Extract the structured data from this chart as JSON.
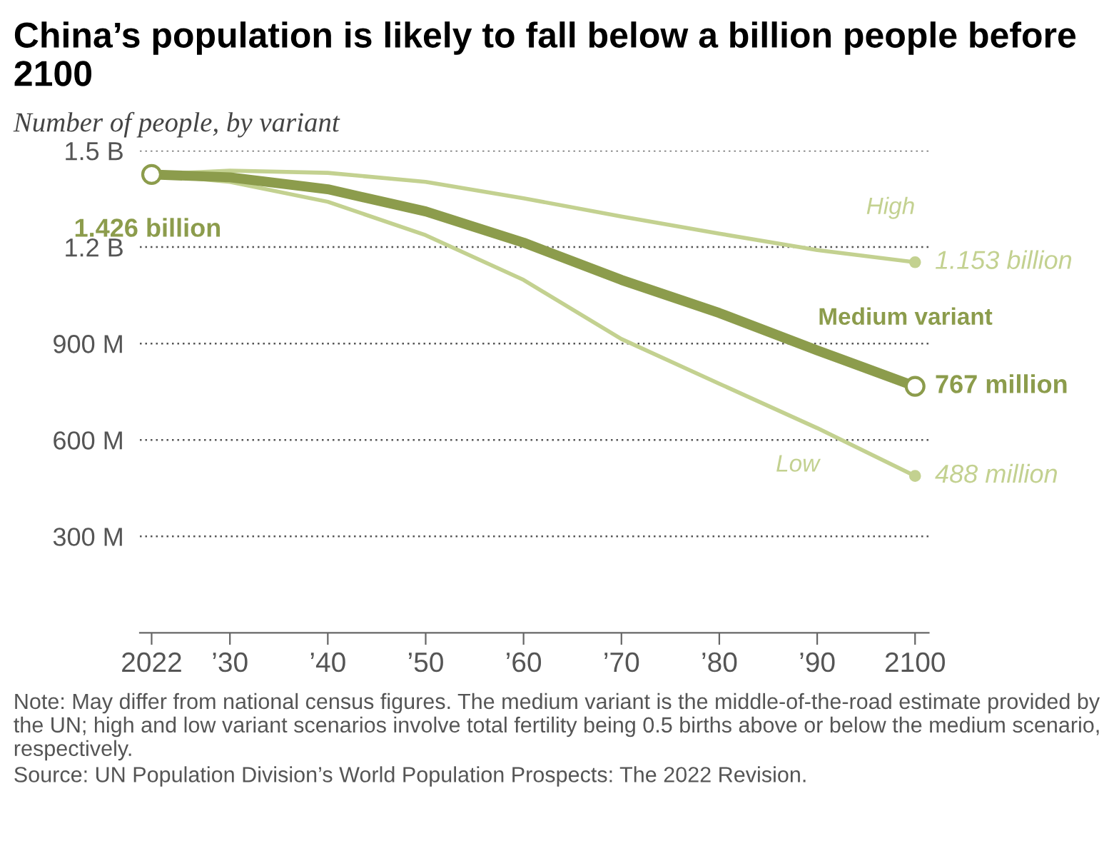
{
  "chart_data": {
    "type": "line",
    "title": "China’s population is likely to fall below a billion people before 2100",
    "subtitle": "Number of people, by variant",
    "x": [
      2022,
      2030,
      2040,
      2050,
      2060,
      2070,
      2080,
      2090,
      2100
    ],
    "series": [
      {
        "name": "High",
        "color": "#c3d190",
        "values": [
          1426000000,
          1438000000,
          1431000000,
          1403000000,
          1352000000,
          1295000000,
          1242000000,
          1191000000,
          1153000000
        ],
        "value_labels": [
          null,
          null,
          null,
          null,
          null,
          null,
          null,
          null,
          "1.153 billion"
        ]
      },
      {
        "name": "Low",
        "color": "#c3d190",
        "values": [
          1426000000,
          1403000000,
          1341000000,
          1237000000,
          1098000000,
          914000000,
          775000000,
          637000000,
          488000000
        ],
        "value_labels": [
          null,
          null,
          null,
          null,
          null,
          null,
          null,
          null,
          "488 million"
        ]
      },
      {
        "name": "Medium variant",
        "color": "#8c9c4c",
        "values": [
          1426000000,
          1417000000,
          1380000000,
          1311000000,
          1214000000,
          1098000000,
          995000000,
          879000000,
          767000000
        ],
        "value_labels": [
          "1.426 billion",
          null,
          null,
          null,
          null,
          null,
          null,
          null,
          "767 million"
        ]
      }
    ],
    "xlim": [
      2020.8,
      2101.4
    ],
    "xticks": [
      2022,
      {
        "value": 2030,
        "label": "’30"
      },
      {
        "value": 2040,
        "label": "’40"
      },
      {
        "value": 2050,
        "label": "’50"
      },
      {
        "value": 2060,
        "label": "’60"
      },
      {
        "value": 2070,
        "label": "’70"
      },
      {
        "value": 2080,
        "label": "’80"
      },
      {
        "value": 2090,
        "label": "’90"
      },
      2100
    ],
    "ylim": [
      0,
      1500000000
    ],
    "yticks": [
      {
        "value": 300000000,
        "label": "300 M"
      },
      {
        "value": 600000000,
        "label": "600 M"
      },
      {
        "value": 900000000,
        "label": "900 M"
      },
      {
        "value": 1200000000,
        "label": "1.2 B"
      },
      {
        "value": 1500000000,
        "label": "1.5 B"
      }
    ],
    "grid": "y",
    "legend": false,
    "annotations": [
      "Note: May differ from national census figures. The medium variant is the middle-of-the-road estimate provided by the UN; high and low variant scenarios involve total fertility being 0.5 births above or below the medium scenario, respectively.",
      "Source: UN Population Division’s World Population Prospects: The 2022 Revision."
    ]
  }
}
